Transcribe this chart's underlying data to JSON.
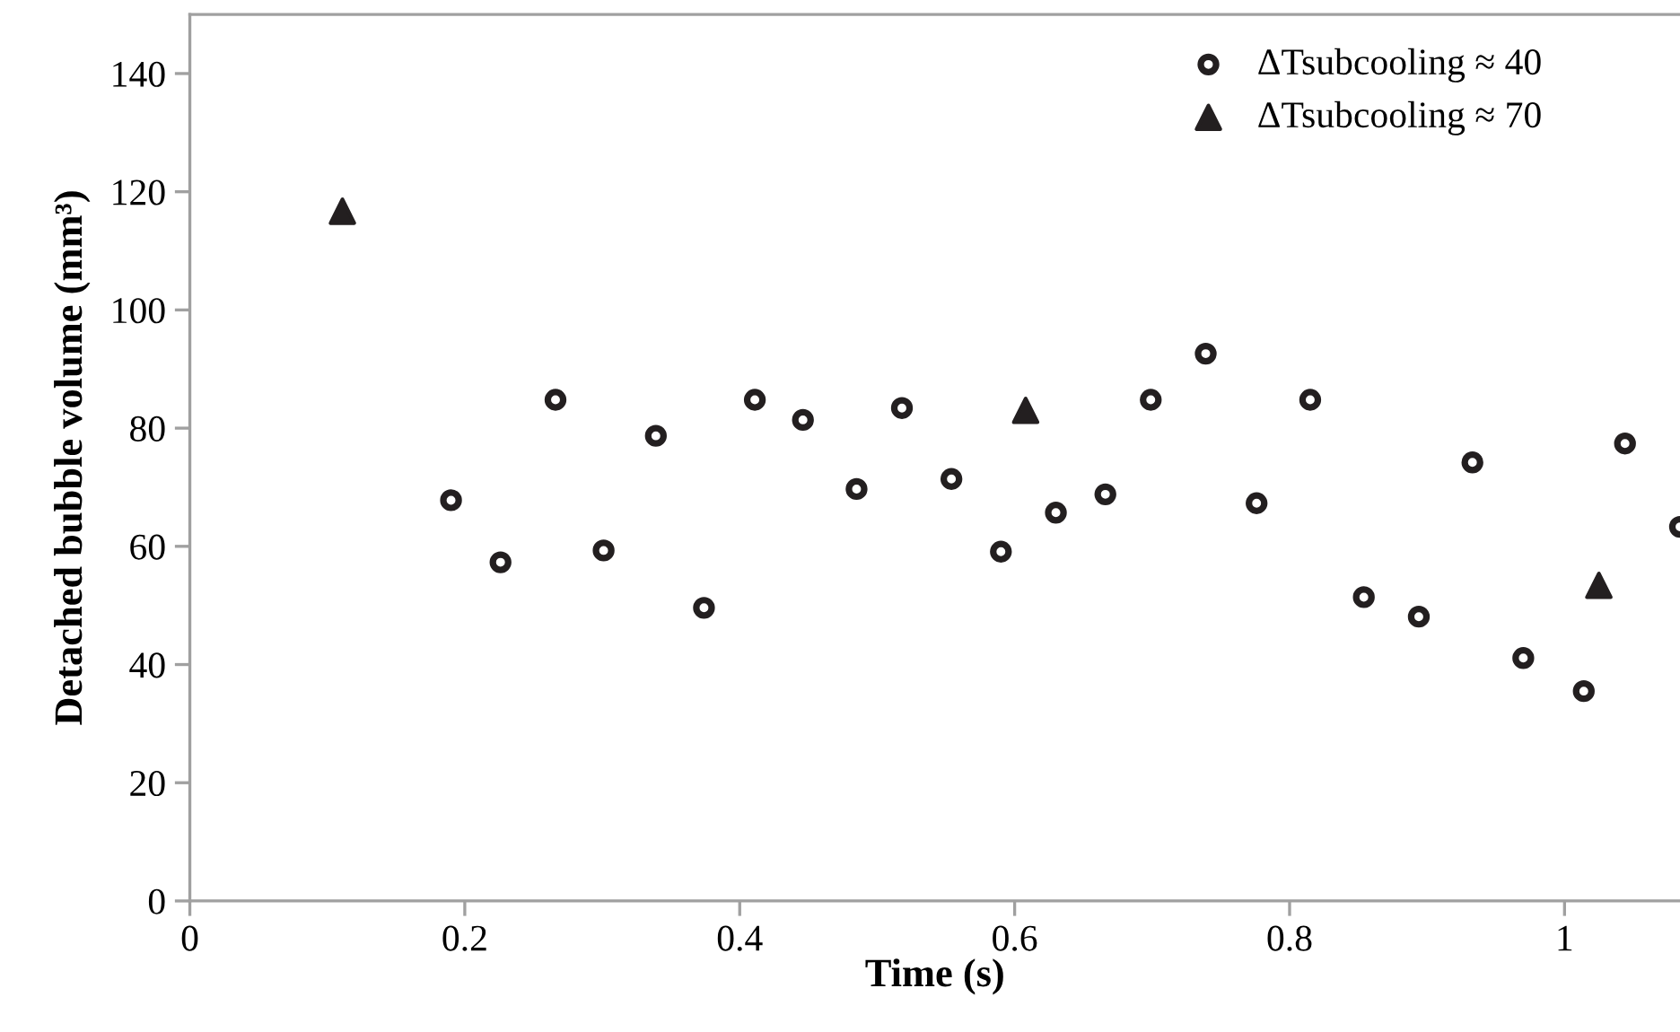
{
  "chart_data": {
    "type": "scatter",
    "xlabel": "Time (s)",
    "ylabel": "Detached bubble volume (mm³)",
    "xlim": [
      0,
      1.084
    ],
    "xticks": [
      0,
      0.2,
      0.4,
      0.6,
      0.8,
      1
    ],
    "ylim": [
      0,
      150
    ],
    "yticks": [
      0,
      20,
      40,
      60,
      80,
      100,
      120,
      140
    ],
    "grid": false,
    "legend": "top right",
    "series": [
      {
        "name": "ΔTsubcooling ≈ 40",
        "color": "#231f20",
        "marker": "circle",
        "x": [
          0.19,
          0.226,
          0.266,
          0.301,
          0.339,
          0.374,
          0.411,
          0.446,
          0.485,
          0.518,
          0.554,
          0.59,
          0.63,
          0.666,
          0.699,
          0.739,
          0.776,
          0.815,
          0.854,
          0.894,
          0.933,
          0.97,
          1.014,
          1.044,
          1.084
        ],
        "values": [
          67.8,
          57.3,
          84.8,
          59.3,
          78.7,
          49.6,
          84.8,
          81.4,
          69.7,
          83.4,
          71.4,
          59.1,
          65.7,
          68.8,
          84.8,
          92.6,
          67.3,
          84.8,
          51.4,
          48.1,
          74.2,
          41.1,
          35.5,
          77.4,
          63.3
        ]
      },
      {
        "name": "ΔTsubcooling ≈ 70",
        "color": "#231f20",
        "marker": "triangle",
        "x": [
          0.111,
          0.608,
          1.025
        ],
        "values": [
          116.7,
          83,
          53.4
        ]
      }
    ]
  }
}
